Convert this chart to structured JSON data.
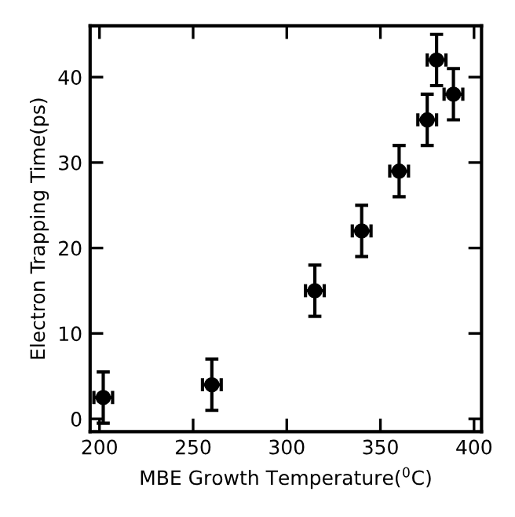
{
  "chart_data": {
    "type": "scatter",
    "xlabel": "MBE Growth Temperature($^{0}$C)",
    "ylabel": "Electron Trapping Time(ps)",
    "x": [
      202,
      260,
      315,
      340,
      360,
      375,
      380,
      389
    ],
    "values": [
      2.5,
      4,
      15,
      22,
      29,
      35,
      42,
      38
    ],
    "errors": [
      3,
      3,
      3,
      3,
      3,
      3,
      3,
      3
    ],
    "xerrors": [
      5,
      5,
      5,
      5,
      5,
      5,
      5,
      5
    ],
    "color": "#000000",
    "marker": "circle",
    "xlim": [
      195,
      404
    ],
    "ylim": [
      -1.5,
      46
    ],
    "xticks": [
      200,
      250,
      300,
      350,
      400
    ],
    "yticks": [
      0,
      10,
      20,
      30,
      40
    ],
    "grid": false
  }
}
